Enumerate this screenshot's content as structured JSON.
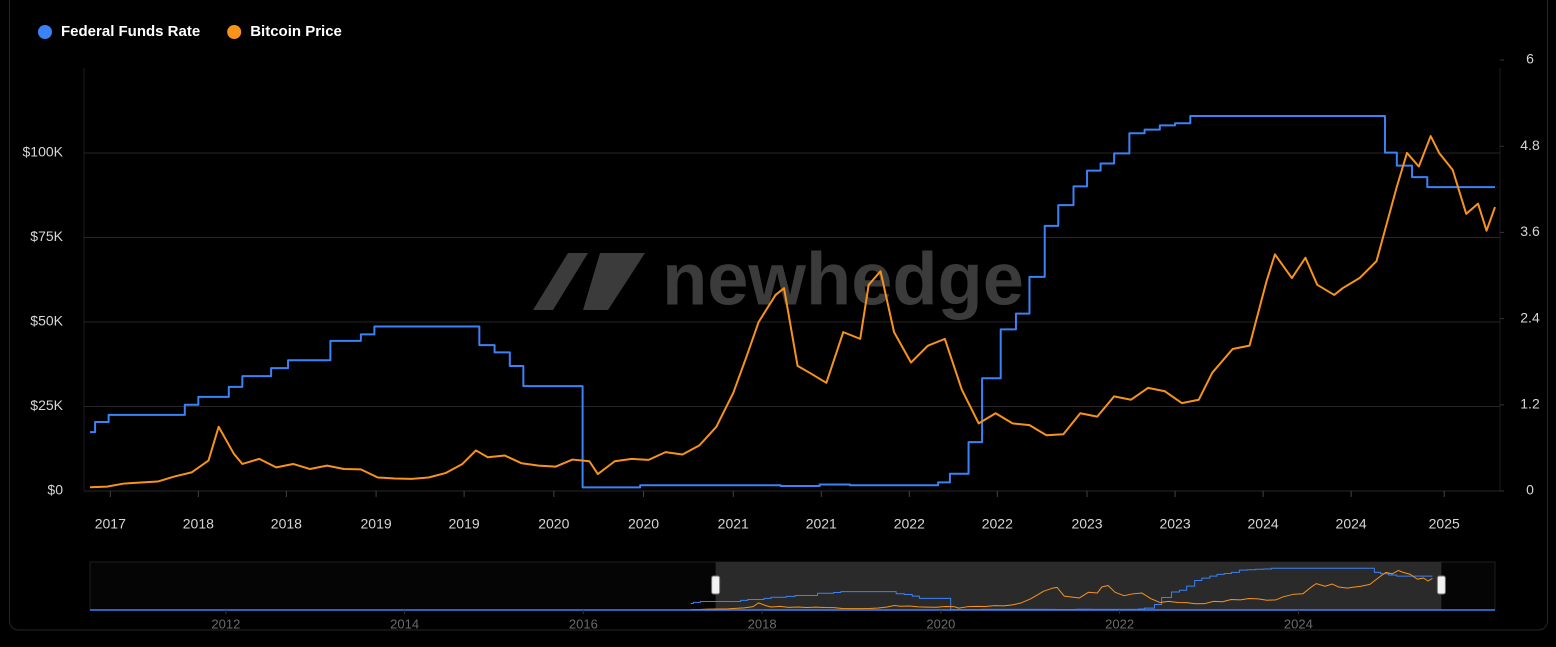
{
  "chart_data": {
    "type": "line",
    "watermark": "newhedge",
    "legend": "top-left",
    "grid": true,
    "xlim": [
      2017.2,
      2025.5
    ],
    "xticks": [
      {
        "value": 2017.32,
        "label": "2017"
      },
      {
        "value": 2017.84,
        "label": "2018"
      },
      {
        "value": 2018.36,
        "label": "2018"
      },
      {
        "value": 2018.89,
        "label": "2019"
      },
      {
        "value": 2019.41,
        "label": "2019"
      },
      {
        "value": 2019.94,
        "label": "2020"
      },
      {
        "value": 2020.47,
        "label": "2020"
      },
      {
        "value": 2021.0,
        "label": "2021"
      },
      {
        "value": 2021.52,
        "label": "2021"
      },
      {
        "value": 2022.04,
        "label": "2022"
      },
      {
        "value": 2022.56,
        "label": "2022"
      },
      {
        "value": 2023.09,
        "label": "2023"
      },
      {
        "value": 2023.61,
        "label": "2023"
      },
      {
        "value": 2024.13,
        "label": "2024"
      },
      {
        "value": 2024.65,
        "label": "2024"
      },
      {
        "value": 2025.2,
        "label": "2025"
      }
    ],
    "ylim": [
      0,
      127500
    ],
    "yticks": [
      {
        "value": 0,
        "label": "$0"
      },
      {
        "value": 25000,
        "label": "$25K"
      },
      {
        "value": 50000,
        "label": "$50K"
      },
      {
        "value": 75000,
        "label": "$75K"
      },
      {
        "value": 100000,
        "label": "$100K"
      }
    ],
    "y2lim": [
      0,
      6
    ],
    "y2ticks": [
      0,
      1.2,
      2.4,
      3.6,
      4.8,
      6
    ],
    "series": [
      {
        "name": "Federal Funds Rate",
        "color": "#3b82f6",
        "axis": "y2",
        "step": true,
        "x": [
          2017.2,
          2017.23,
          2017.31,
          2017.76,
          2017.84,
          2018.02,
          2018.1,
          2018.27,
          2018.37,
          2018.62,
          2018.8,
          2018.88,
          2019.5,
          2019.59,
          2019.68,
          2019.76,
          2020.11,
          2020.45,
          2021.28,
          2021.51,
          2021.69,
          2022.21,
          2022.28,
          2022.39,
          2022.47,
          2022.58,
          2022.67,
          2022.75,
          2022.84,
          2022.92,
          2023.01,
          2023.09,
          2023.17,
          2023.25,
          2023.34,
          2023.43,
          2023.52,
          2023.61,
          2023.7,
          2024.85,
          2024.92,
          2025.01,
          2025.1,
          2025.5
        ],
        "values": [
          0.82,
          0.96,
          1.06,
          1.2,
          1.31,
          1.45,
          1.6,
          1.71,
          1.82,
          2.09,
          2.18,
          2.29,
          2.03,
          1.93,
          1.74,
          1.46,
          0.05,
          0.08,
          0.07,
          0.09,
          0.08,
          0.12,
          0.24,
          0.68,
          1.57,
          2.25,
          2.47,
          2.98,
          3.69,
          3.98,
          4.24,
          4.46,
          4.56,
          4.7,
          4.98,
          5.03,
          5.09,
          5.12,
          5.22,
          4.71,
          4.53,
          4.37,
          4.23,
          4.23
        ]
      },
      {
        "name": "Bitcoin Price",
        "color": "#f7931a",
        "axis": "y",
        "x": [
          2017.2,
          2017.3,
          2017.4,
          2017.5,
          2017.6,
          2017.7,
          2017.8,
          2017.9,
          2017.96,
          2018.05,
          2018.1,
          2018.2,
          2018.3,
          2018.4,
          2018.5,
          2018.6,
          2018.7,
          2018.8,
          2018.9,
          2019.0,
          2019.1,
          2019.2,
          2019.3,
          2019.4,
          2019.48,
          2019.55,
          2019.65,
          2019.75,
          2019.85,
          2019.95,
          2020.05,
          2020.15,
          2020.2,
          2020.3,
          2020.4,
          2020.5,
          2020.6,
          2020.7,
          2020.8,
          2020.9,
          2021.0,
          2021.08,
          2021.15,
          2021.25,
          2021.3,
          2021.38,
          2021.45,
          2021.55,
          2021.65,
          2021.75,
          2021.8,
          2021.87,
          2021.95,
          2022.05,
          2022.15,
          2022.25,
          2022.35,
          2022.45,
          2022.55,
          2022.65,
          2022.75,
          2022.85,
          2022.95,
          2023.05,
          2023.15,
          2023.25,
          2023.35,
          2023.45,
          2023.55,
          2023.65,
          2023.75,
          2023.83,
          2023.95,
          2024.05,
          2024.15,
          2024.2,
          2024.3,
          2024.38,
          2024.45,
          2024.55,
          2024.6,
          2024.7,
          2024.8,
          2024.92,
          2024.98,
          2025.05,
          2025.12,
          2025.17,
          2025.25,
          2025.33,
          2025.4,
          2025.45,
          2025.5
        ],
        "values": [
          1100,
          1300,
          2200,
          2500,
          2800,
          4300,
          5500,
          9000,
          19000,
          11000,
          8000,
          9500,
          7000,
          8000,
          6500,
          7500,
          6500,
          6400,
          4000,
          3700,
          3600,
          4000,
          5300,
          8000,
          12000,
          10000,
          10500,
          8200,
          7500,
          7200,
          9300,
          8800,
          5000,
          8800,
          9500,
          9200,
          11500,
          10800,
          13500,
          19000,
          29000,
          40000,
          50000,
          58000,
          60000,
          37000,
          35000,
          32000,
          47000,
          45000,
          61000,
          65000,
          47000,
          38000,
          43000,
          45000,
          30000,
          20000,
          23000,
          20000,
          19500,
          16500,
          16800,
          23000,
          22000,
          28000,
          27000,
          30500,
          29500,
          26000,
          27000,
          35000,
          42000,
          43000,
          62000,
          70000,
          63000,
          69000,
          61000,
          58000,
          60000,
          63000,
          68000,
          90000,
          100000,
          96000,
          105000,
          100000,
          95000,
          82000,
          85000,
          77000,
          84000
        ]
      }
    ],
    "navigator": {
      "xlim": [
        2010.48,
        2026.2
      ],
      "xticks": [
        2012,
        2014,
        2016,
        2018,
        2020,
        2022,
        2024
      ],
      "selection": [
        2017.48,
        2025.6
      ]
    }
  }
}
